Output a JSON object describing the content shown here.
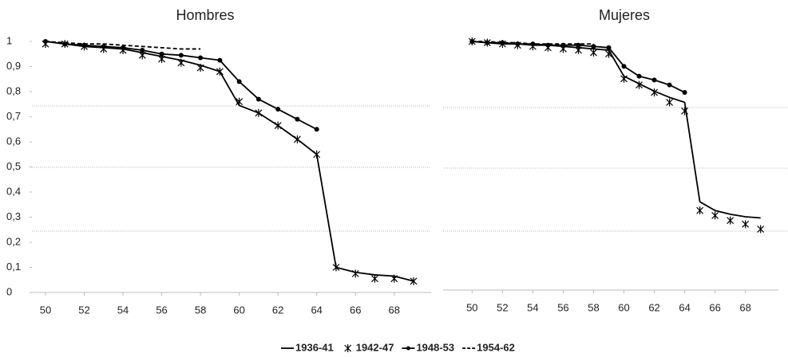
{
  "chart_data": [
    {
      "type": "line",
      "title": "Hombres",
      "x": [
        50,
        51,
        52,
        53,
        54,
        55,
        56,
        57,
        58,
        59,
        60,
        61,
        62,
        63,
        64,
        65,
        66,
        67,
        68,
        69
      ],
      "xlim": [
        49.3,
        69.7
      ],
      "xticks": [
        50,
        52,
        54,
        56,
        58,
        60,
        62,
        64,
        66,
        68
      ],
      "ylim": [
        0,
        1
      ],
      "yticks": [
        0,
        {
          "value": 0.1,
          "label": "0,1"
        },
        {
          "value": 0.2,
          "label": "0,2"
        },
        {
          "value": 0.3,
          "label": "0,3"
        },
        {
          "value": 0.4,
          "label": "0,4"
        },
        {
          "value": 0.5,
          "label": "0,5"
        },
        {
          "value": 0.6,
          "label": "0,6"
        },
        {
          "value": 0.7,
          "label": "0,7"
        },
        {
          "value": 0.8,
          "label": "0,8"
        },
        {
          "value": 0.9,
          "label": "0,9"
        },
        1
      ],
      "series": [
        {
          "name": "1936-41",
          "color": "#000000",
          "line_style": "solid",
          "marker": "none",
          "values": [
            1,
            0.99,
            0.98,
            0.975,
            0.97,
            0.955,
            0.94,
            0.925,
            0.905,
            0.88,
            0.745,
            0.715,
            0.665,
            0.61,
            0.55,
            0.1,
            0.08,
            0.07,
            0.065,
            0.045
          ]
        },
        {
          "name": "1942-47",
          "color": "#000000",
          "line_style": "none",
          "marker": "star",
          "values": [
            0.99,
            0.99,
            0.98,
            0.97,
            0.965,
            0.945,
            0.93,
            0.915,
            0.895,
            0.88,
            0.76,
            0.715,
            0.665,
            0.61,
            0.55,
            0.1,
            0.075,
            0.055,
            0.055,
            0.045
          ]
        },
        {
          "name": "1948-53",
          "color": "#000000",
          "line_style": "solid",
          "marker": "dot",
          "values": [
            1,
            0.99,
            0.985,
            0.98,
            0.975,
            0.965,
            0.95,
            0.945,
            0.935,
            0.925,
            0.84,
            0.77,
            0.73,
            0.69,
            0.65,
            null,
            null,
            null,
            null,
            null
          ]
        },
        {
          "name": "1954-62",
          "color": "#000000",
          "line_style": "dashed",
          "marker": "none",
          "values": [
            1,
            0.995,
            0.99,
            0.99,
            0.985,
            0.98,
            0.975,
            0.97,
            0.97,
            null,
            null,
            null,
            null,
            null,
            null,
            null,
            null,
            null,
            null,
            null
          ]
        }
      ]
    },
    {
      "type": "line",
      "title": "Mujeres",
      "x": [
        50,
        51,
        52,
        53,
        54,
        55,
        56,
        57,
        58,
        59,
        60,
        61,
        62,
        63,
        64,
        65,
        66,
        67,
        68,
        69
      ],
      "xlim": [
        49.3,
        69.7
      ],
      "xticks": [
        50,
        52,
        54,
        56,
        58,
        60,
        62,
        64,
        66,
        68
      ],
      "ylim": [
        0,
        1
      ],
      "series": [
        {
          "name": "1936-41",
          "color": "#000000",
          "line_style": "solid",
          "marker": "none",
          "values": [
            1,
            0.995,
            0.99,
            0.99,
            0.985,
            0.985,
            0.98,
            0.975,
            0.97,
            0.965,
            0.86,
            0.83,
            0.8,
            0.775,
            0.755,
            0.355,
            0.32,
            0.305,
            0.295,
            0.29
          ]
        },
        {
          "name": "1942-47",
          "color": "#000000",
          "line_style": "none",
          "marker": "star",
          "values": [
            1,
            0.995,
            0.99,
            0.985,
            0.98,
            0.975,
            0.97,
            0.965,
            0.955,
            0.95,
            0.85,
            0.825,
            0.795,
            0.755,
            0.72,
            0.32,
            0.3,
            0.28,
            0.265,
            0.245
          ]
        },
        {
          "name": "1948-53",
          "color": "#000000",
          "line_style": "solid",
          "marker": "dot",
          "values": [
            1,
            0.995,
            0.995,
            0.99,
            0.99,
            0.985,
            0.985,
            0.985,
            0.98,
            0.975,
            0.9,
            0.86,
            0.845,
            0.825,
            0.795,
            null,
            null,
            null,
            null,
            null
          ]
        },
        {
          "name": "1954-62",
          "color": "#000000",
          "line_style": "dashed",
          "marker": "none",
          "values": [
            1,
            1,
            0.995,
            0.995,
            0.99,
            0.99,
            0.99,
            0.99,
            0.99,
            null,
            null,
            null,
            null,
            null,
            null,
            null,
            null,
            null,
            null,
            null
          ]
        }
      ]
    }
  ]
}
